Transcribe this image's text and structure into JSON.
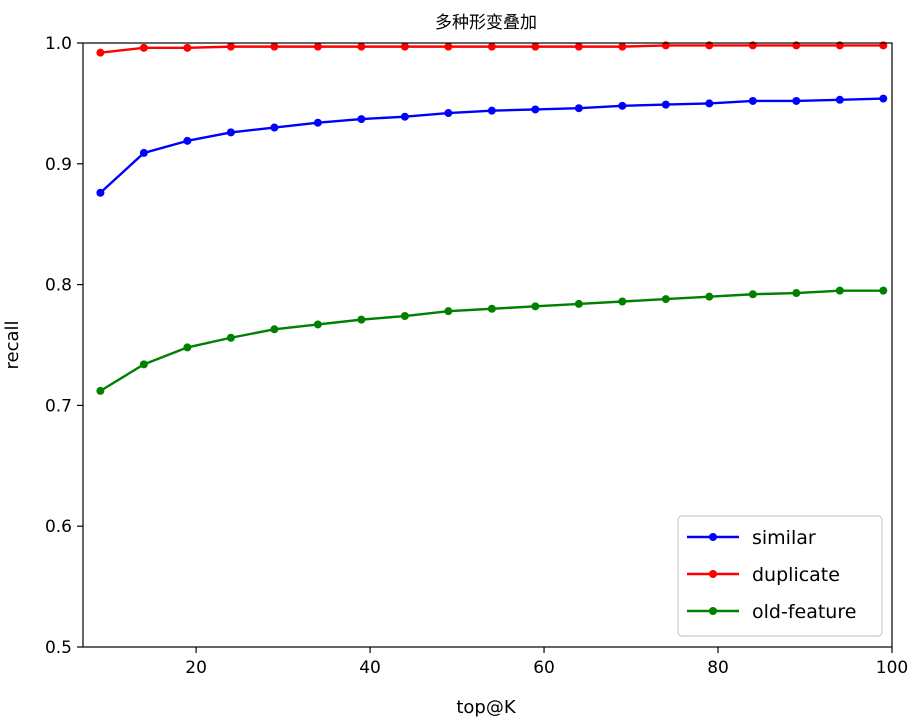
{
  "chart_data": {
    "type": "line",
    "title": "多种形变叠加",
    "xlabel": "top@K",
    "ylabel": "recall",
    "xlim": [
      7,
      100
    ],
    "ylim": [
      0.5,
      1.0
    ],
    "xticks": [
      20,
      40,
      60,
      80,
      100
    ],
    "yticks": [
      0.5,
      0.6,
      0.7,
      0.8,
      0.9,
      1.0
    ],
    "x": [
      9,
      14,
      19,
      24,
      29,
      34,
      39,
      44,
      49,
      54,
      59,
      64,
      69,
      74,
      79,
      84,
      89,
      94,
      99
    ],
    "grid": false,
    "legend_position": "lower-right",
    "series": [
      {
        "name": "similar",
        "color": "#0000ff",
        "marker": "circle",
        "values": [
          0.876,
          0.909,
          0.919,
          0.926,
          0.93,
          0.934,
          0.937,
          0.939,
          0.942,
          0.944,
          0.945,
          0.946,
          0.948,
          0.949,
          0.95,
          0.952,
          0.952,
          0.953,
          0.954
        ]
      },
      {
        "name": "duplicate",
        "color": "#ff0000",
        "marker": "circle",
        "values": [
          0.992,
          0.996,
          0.996,
          0.997,
          0.997,
          0.997,
          0.997,
          0.997,
          0.997,
          0.997,
          0.997,
          0.997,
          0.997,
          0.998,
          0.998,
          0.998,
          0.998,
          0.998,
          0.998
        ]
      },
      {
        "name": "old-feature",
        "color": "#008000",
        "marker": "circle",
        "values": [
          0.712,
          0.734,
          0.748,
          0.756,
          0.763,
          0.767,
          0.771,
          0.774,
          0.778,
          0.78,
          0.782,
          0.784,
          0.786,
          0.788,
          0.79,
          0.792,
          0.793,
          0.795,
          0.795
        ]
      }
    ]
  }
}
